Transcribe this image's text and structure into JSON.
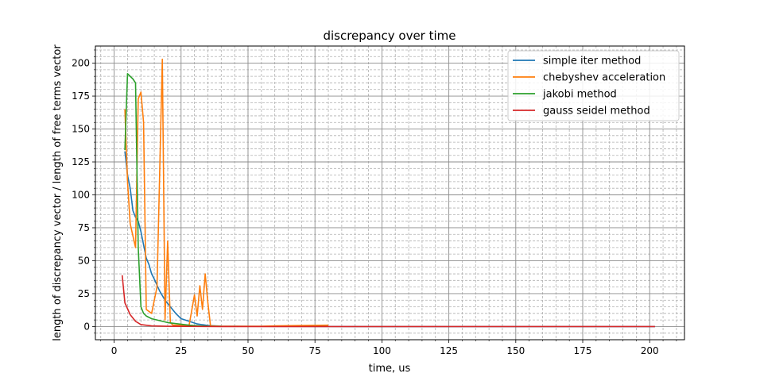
{
  "chart_data": {
    "type": "line",
    "title": "discrepancy over time",
    "xlabel": "time, us",
    "ylabel": "length of discrepancy vector / length of free terms vector",
    "xlim": [
      -7,
      213
    ],
    "ylim": [
      -10,
      213
    ],
    "xticks": [
      0,
      25,
      50,
      75,
      100,
      125,
      150,
      175,
      200
    ],
    "yticks": [
      0,
      25,
      50,
      75,
      100,
      125,
      150,
      175,
      200
    ],
    "grid": "major and minor, dashed minor",
    "legend_position": "top-right",
    "series": [
      {
        "name": "simple iter method",
        "color": "#1f77b4",
        "points": [
          [
            4,
            133
          ],
          [
            5,
            115
          ],
          [
            6,
            105
          ],
          [
            7,
            88
          ],
          [
            8,
            83
          ],
          [
            9,
            80
          ],
          [
            10,
            72
          ],
          [
            11,
            62
          ],
          [
            12,
            52
          ],
          [
            13,
            47
          ],
          [
            14,
            40
          ],
          [
            15,
            36
          ],
          [
            17,
            27
          ],
          [
            19,
            20
          ],
          [
            21,
            15
          ],
          [
            23,
            10
          ],
          [
            25,
            6
          ],
          [
            28,
            4
          ],
          [
            31,
            2
          ],
          [
            35,
            0.8
          ],
          [
            40,
            0.3
          ],
          [
            50,
            0.1
          ],
          [
            100,
            0
          ],
          [
            150,
            0
          ],
          [
            202,
            0
          ]
        ]
      },
      {
        "name": "chebyshev acceleration",
        "color": "#ff7f0e",
        "points": [
          [
            4,
            165
          ],
          [
            5,
            110
          ],
          [
            6,
            78
          ],
          [
            8,
            60
          ],
          [
            9,
            173
          ],
          [
            10,
            178
          ],
          [
            11,
            155
          ],
          [
            12,
            13
          ],
          [
            14,
            10
          ],
          [
            16,
            30
          ],
          [
            18,
            203
          ],
          [
            19,
            5
          ],
          [
            20,
            65
          ],
          [
            21,
            3
          ],
          [
            22,
            1
          ],
          [
            28,
            1
          ],
          [
            30,
            24
          ],
          [
            31,
            8
          ],
          [
            32,
            31
          ],
          [
            33,
            13
          ],
          [
            34,
            40
          ],
          [
            35,
            18
          ],
          [
            36,
            0.5
          ],
          [
            40,
            0.2
          ],
          [
            55,
            0.2
          ],
          [
            60,
            0.5
          ],
          [
            70,
            0.8
          ],
          [
            80,
            1
          ]
        ]
      },
      {
        "name": "jakobi method",
        "color": "#2ca02c",
        "points": [
          [
            4,
            134
          ],
          [
            5,
            192
          ],
          [
            7,
            188
          ],
          [
            8,
            185
          ],
          [
            9,
            60
          ],
          [
            10,
            15
          ],
          [
            11,
            10
          ],
          [
            12,
            8
          ],
          [
            14,
            6
          ],
          [
            16,
            5
          ],
          [
            20,
            3
          ],
          [
            24,
            2
          ],
          [
            28,
            1
          ],
          [
            32,
            0.5
          ],
          [
            36,
            0.2
          ],
          [
            40,
            0.1
          ]
        ]
      },
      {
        "name": "gauss seidel method",
        "color": "#d62728",
        "points": [
          [
            3,
            39
          ],
          [
            4,
            18
          ],
          [
            6,
            9
          ],
          [
            8,
            4
          ],
          [
            10,
            1.5
          ],
          [
            14,
            0.5
          ],
          [
            20,
            0.2
          ],
          [
            40,
            0
          ],
          [
            100,
            0
          ],
          [
            150,
            0
          ],
          [
            202,
            0
          ]
        ]
      }
    ]
  }
}
